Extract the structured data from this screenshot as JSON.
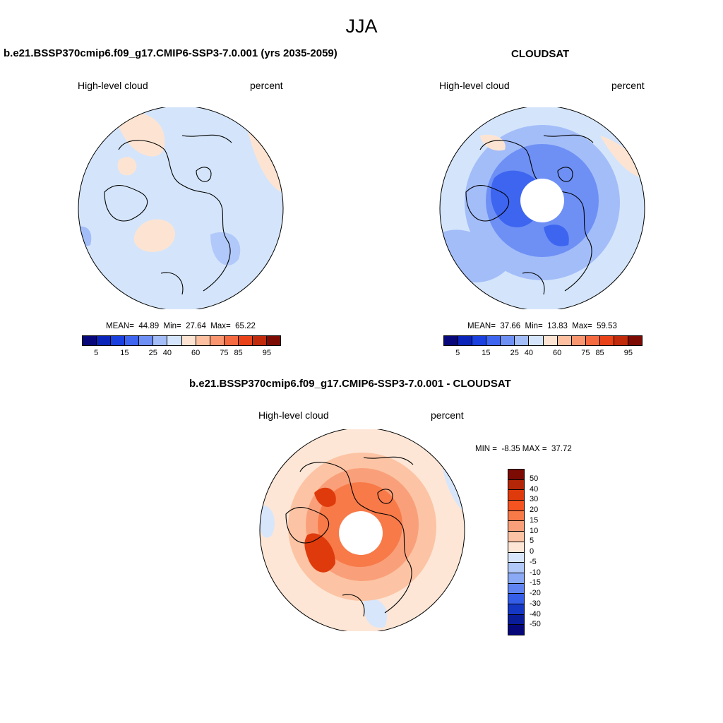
{
  "season": "JJA",
  "variable": "High-level cloud",
  "units": "percent",
  "panels": {
    "model": {
      "title": "b.e21.BSSP370cmip6.f09_g17.CMIP6-SSP3-7.0.001 (yrs 2035-2059)",
      "variable": "High-level cloud",
      "units": "percent",
      "stats_text": "MEAN=  44.89  Min=  27.64  Max=  65.22",
      "mean": 44.89,
      "min": 27.64,
      "max": 65.22,
      "dominant_level_color": "#d4e5fb",
      "warm_patches_color": "#fde4d2"
    },
    "obs": {
      "title": "CLOUDSAT",
      "variable": "High-level cloud",
      "units": "percent",
      "stats_text": "MEAN=  37.66  Min=  13.83  Max=  59.53",
      "mean": 37.66,
      "min": 13.83,
      "max": 59.53,
      "polar_gap": true
    },
    "diff": {
      "title": "b.e21.BSSP370cmip6.f09_g17.CMIP6-SSP3-7.0.001 - CLOUDSAT",
      "variable": "High-level cloud",
      "units": "percent",
      "stats_text": "MIN =  -8.35 MAX =  37.72",
      "min": -8.35,
      "max": 37.72,
      "polar_gap": true
    }
  },
  "colorbar_abs": {
    "tick_labels": [
      "5",
      "15",
      "25",
      "40",
      "60",
      "75",
      "85",
      "95"
    ],
    "colors": [
      "#08087a",
      "#0a23b8",
      "#1a40e0",
      "#3d65f0",
      "#6e90f5",
      "#a3bdf9",
      "#d4e5fb",
      "#fde4d2",
      "#fcc0a0",
      "#f99670",
      "#f56a40",
      "#e94218",
      "#c22a0c",
      "#7c0b04"
    ]
  },
  "colorbar_diff": {
    "tick_labels": [
      "50",
      "40",
      "30",
      "20",
      "15",
      "10",
      "5",
      "0",
      "-5",
      "-10",
      "-15",
      "-20",
      "-30",
      "-40",
      "-50"
    ],
    "colors": [
      "#7c0b04",
      "#b42608",
      "#df3a0c",
      "#f55420",
      "#f77a48",
      "#f9a07a",
      "#fcc4a4",
      "#fde6d6",
      "#d8e6fb",
      "#b1c9f8",
      "#8aaaf6",
      "#5f84f2",
      "#345ee8",
      "#1538c4",
      "#0a1c98",
      "#06087a"
    ]
  }
}
